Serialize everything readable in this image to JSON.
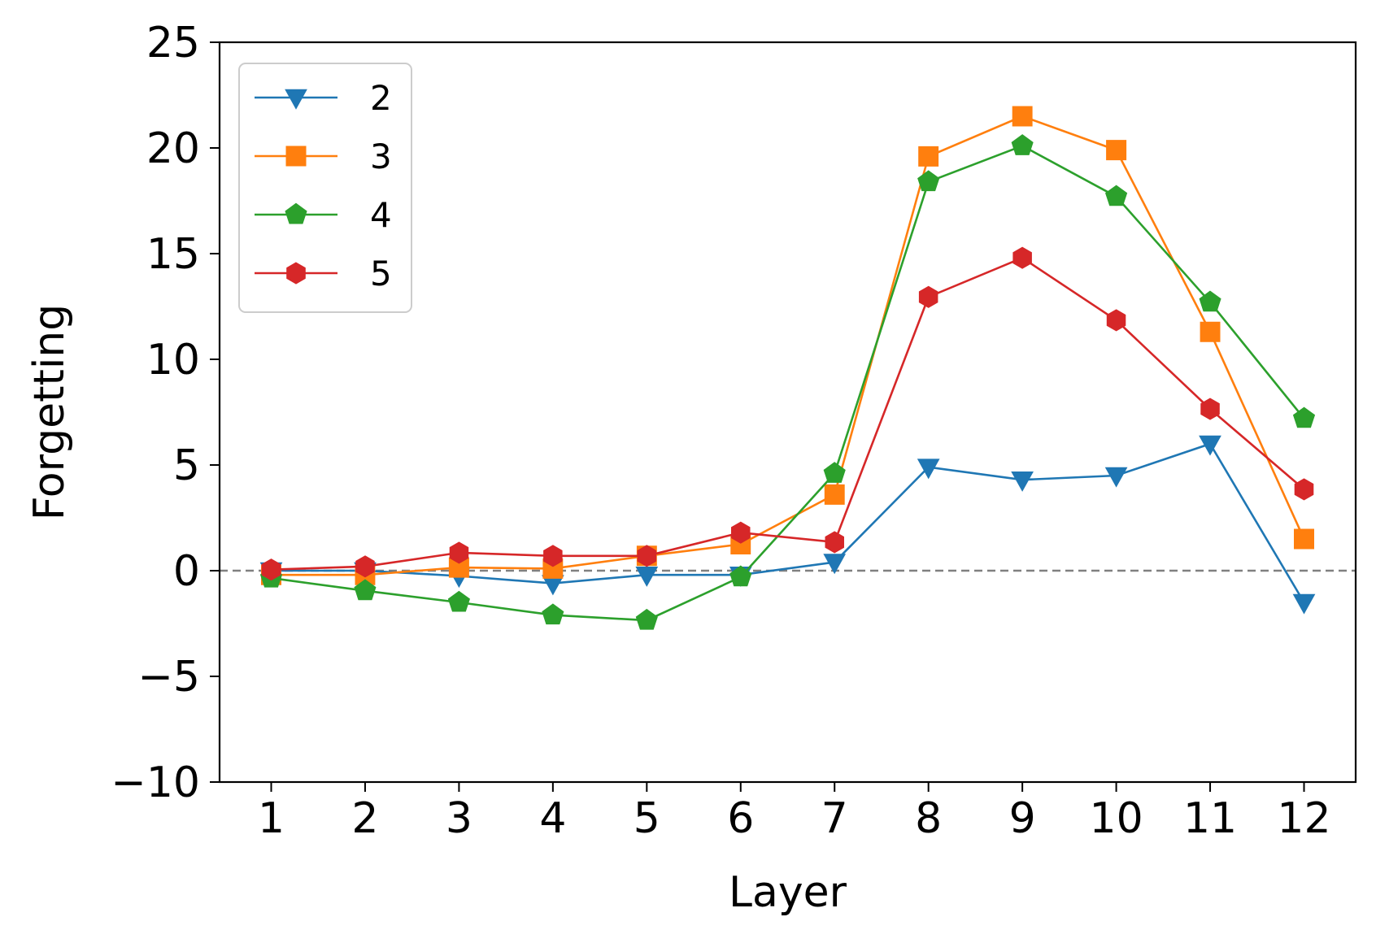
{
  "chart_data": {
    "type": "line",
    "xlabel": "Layer",
    "ylabel": "Forgetting",
    "x": [
      1,
      2,
      3,
      4,
      5,
      6,
      7,
      8,
      9,
      10,
      11,
      12
    ],
    "xticks": [
      "1",
      "2",
      "3",
      "4",
      "5",
      "6",
      "7",
      "8",
      "9",
      "10",
      "11",
      "12"
    ],
    "xlim": [
      0.45,
      12.55
    ],
    "ylim": [
      -10,
      25
    ],
    "yticks": [
      -10,
      -5,
      0,
      5,
      10,
      15,
      20,
      25
    ],
    "ytick_labels": [
      "−10",
      "−5",
      "0",
      "5",
      "10",
      "15",
      "20",
      "25"
    ],
    "reference_line": {
      "y": 0,
      "style": "dashed",
      "color": "#808080"
    },
    "grid": false,
    "legend_position": "top-left",
    "series": [
      {
        "name": "2",
        "color": "#1f77b4",
        "marker": "triangle-down",
        "values": [
          0.0,
          0.0,
          -0.25,
          -0.6,
          -0.2,
          -0.2,
          0.4,
          4.9,
          4.3,
          4.5,
          6.0,
          -1.5
        ]
      },
      {
        "name": "3",
        "color": "#ff7f0e",
        "marker": "square",
        "values": [
          -0.2,
          -0.2,
          0.15,
          0.1,
          0.7,
          1.25,
          3.6,
          19.6,
          21.5,
          19.9,
          11.3,
          1.5
        ]
      },
      {
        "name": "4",
        "color": "#2ca02c",
        "marker": "pentagon",
        "values": [
          -0.35,
          -0.95,
          -1.5,
          -2.1,
          -2.35,
          -0.3,
          4.6,
          18.4,
          20.1,
          17.7,
          12.7,
          7.2
        ]
      },
      {
        "name": "5",
        "color": "#d62728",
        "marker": "hexagon",
        "values": [
          0.05,
          0.2,
          0.85,
          0.7,
          0.7,
          1.8,
          1.35,
          12.95,
          14.8,
          11.85,
          7.65,
          3.85
        ]
      }
    ]
  }
}
